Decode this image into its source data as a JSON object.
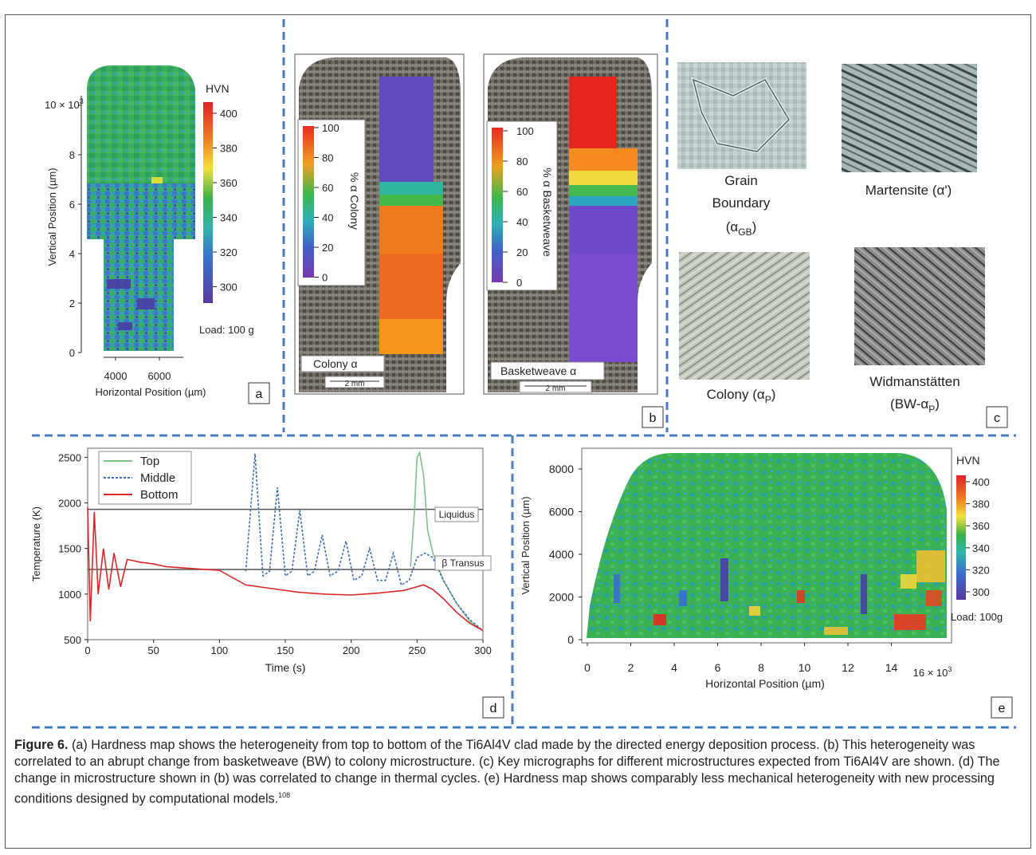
{
  "panel_labels": {
    "a": "a",
    "b": "b",
    "c": "c",
    "d": "d",
    "e": "e"
  },
  "panel_a": {
    "colorbar_title": "HVN",
    "colorbar_ticks": [
      "400",
      "380",
      "360",
      "340",
      "320",
      "300"
    ],
    "load": "Load: 100 g",
    "y_ticks": [
      "0",
      "2",
      "4",
      "6",
      "8"
    ],
    "y_top_tick": "10 × 10",
    "y_top_exp": "3",
    "x_ticks": [
      "4000",
      "6000"
    ],
    "xlabel": "Horizontal Position (µm)",
    "ylabel": "Vertical Position (µm)"
  },
  "panel_b": {
    "left": {
      "ticks": [
        "100",
        "80",
        "60",
        "40",
        "20",
        "0"
      ],
      "label": "% α Colony",
      "caption": "Colony α",
      "scale": "2 mm"
    },
    "right": {
      "ticks": [
        "100",
        "80",
        "60",
        "40",
        "20",
        "0"
      ],
      "label": "% α Basketweave",
      "caption": "Basketweave α",
      "scale": "2 mm"
    }
  },
  "panel_c": {
    "gb_line1": "Grain",
    "gb_line2": "Boundary",
    "gb_sym": "α",
    "gb_sub": "GB",
    "martensite": "Martensite (α')",
    "colony": "Colony (α",
    "colony_sub": "P",
    "widman_line1": "Widmanstätten",
    "widman_line2": "(BW-α",
    "widman_sub": "P"
  },
  "panel_d": {
    "legend": [
      "Top",
      "Middle",
      "Bottom"
    ],
    "ylabel": "Temperature (K)",
    "xlabel": "Time (s)",
    "y_ticks": [
      "500",
      "1000",
      "1500",
      "2000",
      "2500"
    ],
    "x_ticks": [
      "0",
      "50",
      "100",
      "150",
      "200",
      "250",
      "300"
    ],
    "liquidus": "Liquidus",
    "beta_transus": "β Transus"
  },
  "panel_e": {
    "colorbar_title": "HVN",
    "colorbar_ticks": [
      "400",
      "380",
      "360",
      "340",
      "320",
      "300"
    ],
    "load": "Load: 100g",
    "y_ticks": [
      "0",
      "2000",
      "4000",
      "6000",
      "8000"
    ],
    "x_ticks": [
      "0",
      "2",
      "4",
      "6",
      "8",
      "10",
      "12",
      "14"
    ],
    "x_exp_label": "16 × 10",
    "x_exp": "3",
    "xlabel": "Horizontal Position (µm)",
    "ylabel": "Vertical Position (µm)"
  },
  "caption": {
    "label": "Figure 6.",
    "text": "(a) Hardness map shows the heterogeneity from top to bottom of the Ti6Al4V clad made by the directed energy deposition process. (b) This heterogeneity was correlated to an abrupt change from basketweave (BW) to colony microstructure. (c) Key micrographs for different microstructures expected from Ti6Al4V are shown. (d) The change in microstructure shown in (b) was correlated to change in thermal cycles. (e) Hardness map shows comparably less mechanical heterogeneity with new processing conditions designed by computational models.",
    "ref": "108"
  },
  "chart_data": [
    {
      "type": "line",
      "panel": "d",
      "xlabel": "Time (s)",
      "ylabel": "Temperature (K)",
      "xlim": [
        0,
        300
      ],
      "ylim": [
        500,
        2600
      ],
      "reference_lines": [
        {
          "name": "Liquidus",
          "y": 1930
        },
        {
          "name": "β Transus",
          "y": 1270
        }
      ],
      "series": [
        {
          "name": "Top",
          "color": "#7fbf8a",
          "x": [
            245,
            248,
            250,
            252,
            255,
            258,
            262,
            270,
            280,
            290,
            300
          ],
          "y": [
            1300,
            1900,
            2500,
            2550,
            2300,
            1700,
            1450,
            1150,
            900,
            700,
            600
          ]
        },
        {
          "name": "Middle",
          "color": "#3b6fb6",
          "x": [
            120,
            127,
            133,
            138,
            144,
            150,
            155,
            161,
            167,
            172,
            178,
            184,
            190,
            196,
            202,
            208,
            214,
            220,
            226,
            232,
            238,
            244,
            250,
            256,
            262,
            270,
            280,
            290,
            300
          ],
          "y": [
            1250,
            2540,
            1200,
            1250,
            2170,
            1200,
            1250,
            1920,
            1200,
            1250,
            1650,
            1200,
            1250,
            1580,
            1150,
            1200,
            1500,
            1150,
            1150,
            1450,
            1100,
            1150,
            1400,
            1450,
            1400,
            1150,
            900,
            720,
            600
          ]
        },
        {
          "name": "Bottom",
          "color": "#d62828",
          "x": [
            0,
            2,
            5,
            8,
            12,
            16,
            20,
            25,
            30,
            40,
            50,
            60,
            80,
            100,
            120,
            140,
            160,
            180,
            200,
            220,
            240,
            255,
            262,
            270,
            280,
            290,
            300
          ],
          "y": [
            1950,
            700,
            1900,
            1000,
            1500,
            1050,
            1450,
            1080,
            1380,
            1350,
            1330,
            1300,
            1280,
            1260,
            1100,
            1060,
            1020,
            1000,
            990,
            1010,
            1040,
            1100,
            1050,
            950,
            800,
            680,
            600
          ]
        }
      ]
    }
  ]
}
